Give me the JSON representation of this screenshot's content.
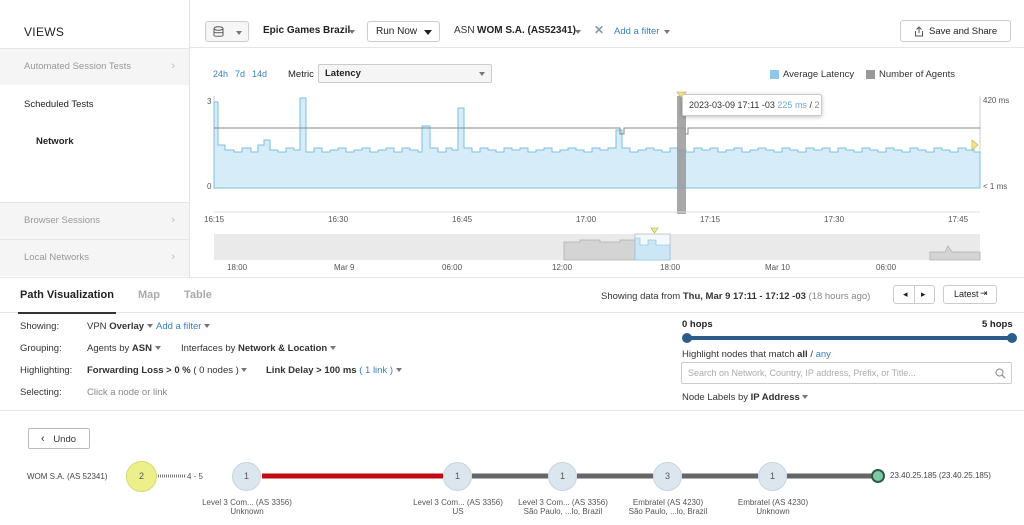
{
  "sidebar": {
    "title": "VIEWS",
    "items": [
      {
        "label": "Automated Session Tests"
      },
      {
        "label": "Scheduled Tests"
      },
      {
        "label": "Network"
      },
      {
        "label": "Browser Sessions"
      },
      {
        "label": "Local Networks"
      }
    ]
  },
  "toolbar": {
    "test_name": "Epic Games Brazil",
    "run_now": "Run Now",
    "asn_prefix": "ASN",
    "asn_value": "WOM S.A. (AS52341)",
    "add_filter": "Add a filter",
    "save_share": "Save and Share"
  },
  "chart": {
    "ranges": [
      "24h",
      "7d",
      "14d"
    ],
    "metric_label": "Metric",
    "metric_value": "Latency",
    "legend": [
      {
        "label": "Average Latency",
        "color": "#8ec8ea"
      },
      {
        "label": "Number of Agents",
        "color": "#999999"
      }
    ],
    "y_left_top": "3",
    "y_left_bottom": "0",
    "y_right_top": "420 ms",
    "y_right_bottom": "< 1 ms",
    "x_ticks": [
      "16:15",
      "16:30",
      "16:45",
      "17:00",
      "17:15",
      "17:30",
      "17:45"
    ],
    "overview_ticks": [
      "18:00",
      "Mar 9",
      "06:00",
      "12:00",
      "18:00",
      "Mar 10",
      "06:00"
    ],
    "tooltip": {
      "time": "2023-03-09 17:11 -03",
      "latency": "225 ms",
      "sep": "/",
      "agents": "2"
    }
  },
  "chart_data": {
    "type": "area",
    "title": "",
    "series": [
      {
        "name": "Average Latency",
        "axis": "right",
        "unit": "ms",
        "range": [
          0,
          420
        ]
      },
      {
        "name": "Number of Agents",
        "axis": "left",
        "range": [
          0,
          3
        ]
      }
    ],
    "x_range": [
      "16:15",
      "17:50"
    ],
    "ylabel_left": "",
    "ylabel_right": ""
  },
  "tabs": {
    "items": [
      "Path Visualization",
      "Map",
      "Table"
    ],
    "showing_prefix": "Showing data from",
    "showing_range": "Thu, Mar 9 17:11 - 17:12 -03",
    "showing_ago": "(18 hours ago)",
    "latest": "Latest"
  },
  "settings": {
    "showing_label": "Showing:",
    "showing_vpn": "VPN",
    "showing_overlay": "Overlay",
    "showing_add_filter": "Add a filter",
    "grouping_label": "Grouping:",
    "grouping_agents": "Agents by",
    "grouping_agents_val": "ASN",
    "grouping_interfaces": "Interfaces by",
    "grouping_interfaces_val": "Network & Location",
    "highlighting_label": "Highlighting:",
    "highlight_fwd": "Forwarding Loss > 0 %",
    "highlight_fwd_nodes": "( 0 nodes )",
    "highlight_link": "Link Delay > 100 ms",
    "highlight_link_count": "( 1 link )",
    "selecting_label": "Selecting:",
    "selecting_hint": "Click a node or link"
  },
  "hops": {
    "min_label": "0 hops",
    "max_label": "5 hops",
    "min_value": 0,
    "max_value": 5,
    "range_low": 0,
    "range_high": 5,
    "highlight_prefix": "Highlight nodes that match",
    "highlight_all": "all",
    "highlight_sep": "/",
    "highlight_any": "any",
    "search_placeholder": "Search on Network, Country, IP address, Prefix, or Title...",
    "node_labels_prefix": "Node Labels by",
    "node_labels_value": "IP Address"
  },
  "path": {
    "undo": "Undo",
    "source": "WOM S.A. (AS 52341)",
    "agent_count": "2",
    "hop_range": "4 - 5",
    "nodes": [
      {
        "count": "1",
        "line1": "Level 3 Com... (AS 3356)",
        "line2": "Unknown"
      },
      {
        "count": "1",
        "line1": "Level 3 Com... (AS 3356)",
        "line2": "US"
      },
      {
        "count": "1",
        "line1": "Level 3 Com... (AS 3356)",
        "line2": "São Paulo, ...lo, Brazil"
      },
      {
        "count": "3",
        "line1": "Embratel (AS 4230)",
        "line2": "São Paulo, ...lo, Brazil"
      },
      {
        "count": "1",
        "line1": "Embratel (AS 4230)",
        "line2": "Unknown"
      }
    ],
    "destination": "23.40.25.185 (23.40.25.185)"
  }
}
